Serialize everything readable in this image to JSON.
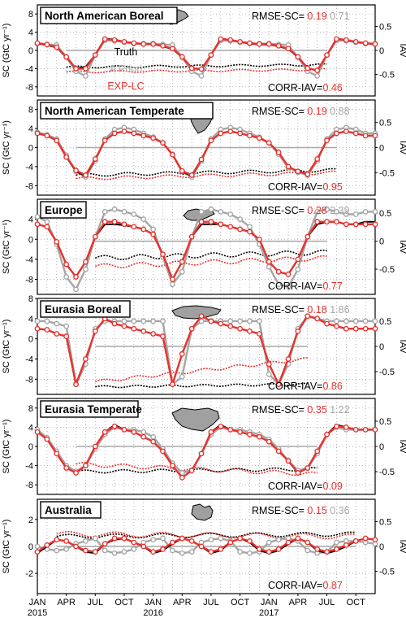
{
  "figure": {
    "ylabel_left": "SC (GtC yr⁻¹)",
    "ylabel_right": "IAV",
    "x_ticks": [
      {
        "label": "JAN",
        "month": 0,
        "year": "2015"
      },
      {
        "label": "APR",
        "month": 3
      },
      {
        "label": "JUL",
        "month": 6
      },
      {
        "label": "OCT",
        "month": 9
      },
      {
        "label": "JAN",
        "month": 12,
        "year": "2016"
      },
      {
        "label": "APR",
        "month": 15
      },
      {
        "label": "JUL",
        "month": 18
      },
      {
        "label": "OCT",
        "month": 21
      },
      {
        "label": "JAN",
        "month": 24,
        "year": "2017"
      },
      {
        "label": "APR",
        "month": 27
      },
      {
        "label": "JUL",
        "month": 30
      },
      {
        "label": "OCT",
        "month": 33
      }
    ],
    "x_range_months": [
      0,
      35
    ],
    "legend": {
      "truth": "Truth",
      "apriori": "A Priori",
      "exp": "EXP-LC"
    },
    "colors": {
      "truth": "#000000",
      "apriori": "#a6a6a6",
      "exp": "#e8332f",
      "grid": "#9a9a9a"
    },
    "labels": {
      "rmse": "RMSE-SC=",
      "corr": "CORR-IAV="
    },
    "map_icons": [
      "north-america-boreal-map-icon",
      "north-america-temperate-map-icon",
      "europe-map-icon",
      "eurasia-boreal-map-icon",
      "eurasia-temperate-map-icon",
      "australia-map-icon"
    ]
  },
  "chart_data": [
    {
      "type": "line",
      "title": "North American Boreal",
      "ylim": [
        -10,
        10
      ],
      "yticks": [
        8,
        4,
        0,
        -4,
        -8
      ],
      "iav_ylim": [
        -0.95,
        0.95
      ],
      "iav_ticks": [
        0.5,
        0,
        -0.5
      ],
      "rmse_exp": "0.19",
      "rmse_apriori": "0.71",
      "corr_iav": "0.46",
      "series": [
        {
          "name": "Truth",
          "values": [
            1.5,
            1.2,
            0.6,
            -1.5,
            -4.0,
            -3.6,
            -1,
            2.6,
            2.4,
            1.9,
            1.6,
            1.4,
            1.4,
            0.9,
            0.3,
            -1.5,
            -3.8,
            -4.2,
            -1,
            2.6,
            2.3,
            1.9,
            1.5,
            1.3,
            1.3,
            0.9,
            0.3,
            -1.5,
            -3.8,
            -4.5,
            -1,
            2.6,
            2.3,
            1.9,
            1.6,
            1.3
          ]
        },
        {
          "name": "A Priori",
          "values": [
            1.5,
            1.3,
            1.2,
            -1.5,
            -4.6,
            -5.6,
            -1,
            2.2,
            2.1,
            1.8,
            1.5,
            1.5,
            1.5,
            1.3,
            1.2,
            -1.5,
            -4.6,
            -5.6,
            -1,
            2.2,
            2.1,
            1.8,
            1.5,
            1.5,
            1.5,
            1.3,
            1.2,
            -1.5,
            -4.6,
            -5.6,
            -1,
            2.2,
            2.1,
            1.8,
            1.5,
            1.5
          ]
        },
        {
          "name": "EXP-LC",
          "values": [
            1.6,
            1.3,
            0.7,
            -1.4,
            -4.0,
            -4.0,
            -1,
            2.5,
            2.3,
            1.9,
            1.6,
            1.4,
            1.4,
            1.0,
            0.4,
            -1.4,
            -3.9,
            -4.1,
            -1,
            2.5,
            2.3,
            1.9,
            1.6,
            1.4,
            1.4,
            1.0,
            0.4,
            -1.4,
            -3.9,
            -4.4,
            -1,
            2.5,
            2.3,
            1.9,
            1.6,
            1.4
          ]
        }
      ],
      "iav": {
        "truth": {
          "start_month": 3,
          "end_month": 30,
          "start": -0.35,
          "end": -0.3,
          "wiggle": 0.02
        },
        "apriori": {
          "value": 0,
          "start_month": 3,
          "end_month": 30
        },
        "exp": {
          "start_month": 3,
          "end_month": 30,
          "start": -0.45,
          "end": -0.4,
          "wiggle": 0.02
        }
      }
    },
    {
      "type": "line",
      "title": "North American Temperate",
      "ylim": [
        -10,
        10
      ],
      "yticks": [
        8,
        4,
        0,
        -4,
        -8
      ],
      "iav_ylim": [
        -0.95,
        0.95
      ],
      "iav_ticks": [
        0.5,
        0,
        -0.5
      ],
      "rmse_exp": "0.19",
      "rmse_apriori": "0.88",
      "corr_iav": "0.95",
      "series": [
        {
          "name": "Truth",
          "values": [
            3.0,
            2.5,
            1.5,
            -2.0,
            -5.0,
            -6.0,
            -2.5,
            1.5,
            3.0,
            3.4,
            3.0,
            2.5,
            2.0,
            1.0,
            -1.5,
            -5.0,
            -6.0,
            -2.5,
            1.5,
            3.0,
            3.4,
            3.0,
            2.5,
            2.0,
            1.0,
            -1.0,
            -4.0,
            -5.0,
            -5.5,
            -2.5,
            1.5,
            3.0,
            3.4,
            3.0,
            2.5,
            2.5
          ]
        },
        {
          "name": "A Priori",
          "values": [
            3.2,
            2.7,
            1.8,
            -1.6,
            -5.0,
            -6.2,
            -2.8,
            1.8,
            3.8,
            4.2,
            3.8,
            3.0,
            2.2,
            1.0,
            -1.4,
            -5.0,
            -6.2,
            -2.8,
            1.8,
            3.8,
            4.2,
            3.8,
            3.0,
            2.2,
            1.0,
            -1.4,
            -4.2,
            -5.2,
            -5.8,
            -2.8,
            1.8,
            3.8,
            4.2,
            3.8,
            3.0,
            3.0
          ]
        },
        {
          "name": "EXP-LC",
          "values": [
            3.0,
            2.5,
            1.5,
            -2.0,
            -4.8,
            -5.8,
            -2.4,
            1.5,
            3.0,
            3.4,
            3.0,
            2.5,
            2.0,
            1.0,
            -1.5,
            -4.9,
            -5.8,
            -2.5,
            1.5,
            3.0,
            3.4,
            3.0,
            2.5,
            2.0,
            1.0,
            -1.0,
            -4.0,
            -5.0,
            -5.6,
            -2.4,
            1.5,
            3.0,
            3.4,
            3.0,
            2.5,
            2.5
          ]
        }
      ],
      "iav": {
        "truth": {
          "start_month": 4,
          "end_month": 31,
          "start": -0.55,
          "end": -0.45,
          "wiggle": 0.03
        },
        "apriori": {
          "value": 0,
          "start_month": 4,
          "end_month": 31
        },
        "exp": {
          "start_month": 4,
          "end_month": 31,
          "start": -0.62,
          "end": -0.5,
          "wiggle": 0.03
        }
      }
    },
    {
      "type": "line",
      "title": "Europe",
      "ylim": [
        -11,
        8
      ],
      "yticks": [
        4,
        0,
        -4,
        -8
      ],
      "iav_ylim": [
        -0.95,
        0.75
      ],
      "iav_ticks": [
        0.5,
        0,
        -0.5
      ],
      "rmse_exp": "0.28",
      "rmse_apriori": "2.39",
      "corr_iav": "0.77",
      "series": [
        {
          "name": "Truth",
          "values": [
            3.0,
            2.5,
            -0.5,
            -5.0,
            -7.5,
            -4.5,
            0.5,
            3.0,
            3.0,
            2.8,
            2.5,
            2.0,
            1.0,
            -3.0,
            -8.0,
            -4.5,
            0.5,
            3.0,
            3.0,
            3.0,
            2.5,
            2.0,
            1.5,
            0.0,
            -4.5,
            -6.5,
            -7.0,
            -4.0,
            0.5,
            3.0,
            3.5,
            3.5,
            3.0,
            3.0,
            3.5,
            3.5
          ]
        },
        {
          "name": "A Priori",
          "values": [
            4.5,
            3.5,
            -1.0,
            -7.5,
            -10.0,
            -6.0,
            0.5,
            5.5,
            6.0,
            5.5,
            5.0,
            4.0,
            2.0,
            -3.5,
            -9.0,
            -6.5,
            0.5,
            5.5,
            6.0,
            5.5,
            5.0,
            4.0,
            2.5,
            -1.0,
            -5.5,
            -9.0,
            -9.5,
            -6.0,
            0.5,
            5.5,
            6.0,
            5.5,
            5.0,
            5.0,
            5.5,
            5.5
          ]
        },
        {
          "name": "EXP-LC",
          "values": [
            3.0,
            2.5,
            -0.5,
            -5.0,
            -7.5,
            -4.5,
            0.5,
            3.5,
            3.5,
            3.0,
            2.5,
            2.0,
            1.0,
            -3.0,
            -8.0,
            -4.5,
            0.5,
            3.5,
            3.5,
            3.0,
            2.5,
            2.0,
            1.5,
            0.0,
            -4.5,
            -6.5,
            -7.0,
            -4.0,
            0.5,
            3.5,
            3.5,
            3.5,
            3.0,
            3.0,
            3.0,
            3.0
          ]
        }
      ],
      "iav": {
        "truth": {
          "start_month": 6,
          "end_month": 30,
          "start": -0.3,
          "end": -0.2,
          "wiggle": 0.04
        },
        "apriori": {
          "value": 0,
          "start_month": 6,
          "end_month": 30
        },
        "exp": {
          "start_month": 6,
          "end_month": 30,
          "start": -0.45,
          "end": -0.3,
          "wiggle": 0.04
        }
      }
    },
    {
      "type": "line",
      "title": "Eurasia Boreal",
      "ylim": [
        -11,
        8
      ],
      "yticks": [
        8,
        4,
        0,
        -4,
        -8
      ],
      "iav_ylim": [
        -0.95,
        0.95
      ],
      "iav_ticks": [
        0.5,
        0,
        -0.5
      ],
      "rmse_exp": "0.18",
      "rmse_apriori": "1.86",
      "corr_iav": "0.86",
      "series": [
        {
          "name": "Truth",
          "values": [
            2.0,
            1.8,
            1.0,
            0.5,
            -9.0,
            -4.0,
            1.5,
            4.0,
            3.0,
            2.5,
            2.0,
            1.5,
            1.0,
            0.5,
            -9.0,
            -3.0,
            2.0,
            4.5,
            3.5,
            3.0,
            2.5,
            2.0,
            1.5,
            1.0,
            -5.0,
            -9.0,
            -4.0,
            1.5,
            4.5,
            4.0,
            3.0,
            2.5,
            2.0,
            2.0,
            2.0,
            2.0
          ]
        },
        {
          "name": "A Priori",
          "values": [
            3.5,
            3.5,
            3.0,
            2.5,
            -9.0,
            -5.0,
            2.0,
            3.5,
            3.5,
            3.5,
            3.5,
            3.5,
            3.5,
            3.5,
            -9.0,
            -7.5,
            2.0,
            3.5,
            3.5,
            3.5,
            3.5,
            3.5,
            3.5,
            3.5,
            -7.0,
            -9.0,
            -5.0,
            2.0,
            4.5,
            4.0,
            3.5,
            3.5,
            3.5,
            3.5,
            3.5,
            3.5
          ]
        },
        {
          "name": "EXP-LC",
          "values": [
            2.0,
            1.8,
            1.0,
            0.5,
            -9.0,
            -4.0,
            1.5,
            4.0,
            3.0,
            2.5,
            2.0,
            1.5,
            1.0,
            0.5,
            -9.0,
            -3.0,
            2.0,
            4.5,
            3.5,
            3.0,
            2.5,
            2.0,
            1.5,
            1.0,
            -5.0,
            -9.0,
            -4.0,
            1.5,
            4.5,
            4.0,
            3.0,
            2.5,
            2.0,
            2.0,
            2.0,
            2.0
          ]
        }
      ],
      "iav": {
        "truth": {
          "start_month": 6,
          "end_month": 28,
          "start": -0.8,
          "end": -0.75,
          "wiggle": 0.02
        },
        "apriori": {
          "value": 0,
          "start_month": 6,
          "end_month": 28
        },
        "exp": {
          "start_month": 6,
          "end_month": 28,
          "start": -0.7,
          "end": -0.25,
          "wiggle": 0.03
        }
      }
    },
    {
      "type": "line",
      "title": "Eurasia Temperate",
      "ylim": [
        -10,
        10
      ],
      "yticks": [
        8,
        4,
        0,
        -4,
        -8
      ],
      "iav_ylim": [
        -0.95,
        0.95
      ],
      "iav_ticks": [
        0.5,
        0,
        -0.5
      ],
      "rmse_exp": "0.35",
      "rmse_apriori": "1.22",
      "corr_iav": "0.09",
      "series": [
        {
          "name": "Truth",
          "values": [
            3.0,
            1.5,
            -1.5,
            -4.5,
            -5.5,
            -4.0,
            0.0,
            3.0,
            4.5,
            3.5,
            3.0,
            2.0,
            1.0,
            -1.0,
            -4.0,
            -6.5,
            -5.0,
            -1.5,
            3.0,
            4.5,
            3.5,
            3.0,
            2.5,
            2.0,
            1.0,
            -1.0,
            -3.0,
            -5.5,
            -4.5,
            -1.0,
            2.5,
            4.5,
            4.0,
            3.5,
            3.5,
            3.5
          ]
        },
        {
          "name": "A Priori",
          "values": [
            3.5,
            1.8,
            -1.0,
            -4.0,
            -5.2,
            -4.0,
            -0.5,
            2.5,
            4.0,
            3.5,
            3.5,
            3.0,
            2.0,
            -0.5,
            -3.5,
            -5.5,
            -5.0,
            -1.5,
            2.5,
            4.0,
            3.5,
            3.5,
            3.0,
            2.5,
            1.5,
            -0.5,
            -3.0,
            -5.0,
            -4.5,
            -1.5,
            2.5,
            4.0,
            3.5,
            3.5,
            3.5,
            3.5
          ]
        },
        {
          "name": "EXP-LC",
          "values": [
            3.0,
            1.5,
            -1.5,
            -4.5,
            -5.5,
            -4.0,
            0.0,
            3.0,
            4.2,
            3.5,
            3.0,
            2.0,
            1.0,
            -1.0,
            -4.0,
            -6.5,
            -5.0,
            -1.5,
            3.0,
            4.2,
            3.5,
            3.0,
            2.5,
            2.0,
            1.0,
            -1.0,
            -3.0,
            -5.5,
            -4.5,
            -1.0,
            2.5,
            4.2,
            4.0,
            3.5,
            3.5,
            3.5
          ]
        }
      ],
      "iav": {
        "truth": {
          "start_month": 4,
          "end_month": 29,
          "start": -0.5,
          "end": -0.45,
          "wiggle": 0.03
        },
        "apriori": {
          "value": 0,
          "start_month": 4,
          "end_month": 29
        },
        "exp": {
          "start_month": 4,
          "end_month": 29,
          "start": -0.35,
          "end": -0.55,
          "wiggle": 0.04
        }
      }
    },
    {
      "type": "line",
      "title": "Australia",
      "ylim": [
        -3.5,
        3.5
      ],
      "yticks": [
        2,
        0,
        -2
      ],
      "iav_ylim": [
        -0.95,
        0.95
      ],
      "iav_ticks": [
        0.5,
        0,
        -0.5
      ],
      "rmse_exp": "0.15",
      "rmse_apriori": "0.36",
      "corr_iav": "0.87",
      "series": [
        {
          "name": "Truth",
          "values": [
            -0.5,
            0.0,
            0.5,
            0.4,
            0.0,
            -0.4,
            -0.5,
            0.2,
            0.5,
            0.6,
            0.3,
            0.0,
            -0.5,
            -0.3,
            0.2,
            0.6,
            0.4,
            0.0,
            -0.5,
            -0.3,
            0.3,
            0.6,
            0.3,
            -0.3,
            -0.5,
            -0.3,
            0.2,
            0.6,
            0.3,
            -0.3,
            -0.5,
            -0.3,
            0.0,
            0.4,
            0.6,
            0.5
          ]
        },
        {
          "name": "A Priori",
          "values": [
            0.0,
            -0.2,
            -0.3,
            -0.2,
            0.2,
            0.4,
            0.6,
            -0.3,
            -0.5,
            -0.4,
            -0.2,
            0.3,
            0.5,
            0.6,
            -0.3,
            -0.5,
            -0.4,
            0.3,
            0.5,
            0.6,
            0.4,
            -0.4,
            -0.5,
            -0.4,
            0.3,
            0.5,
            0.6,
            0.4,
            -0.3,
            -0.5,
            -0.4,
            0.3,
            0.4,
            0.4,
            0.3,
            0.2
          ]
        },
        {
          "name": "EXP-LC",
          "values": [
            -0.4,
            0.1,
            0.5,
            0.4,
            0.0,
            -0.3,
            -0.4,
            0.2,
            0.6,
            0.6,
            0.3,
            0.0,
            -0.4,
            -0.2,
            0.3,
            0.6,
            0.4,
            0.0,
            -0.4,
            -0.2,
            0.3,
            0.6,
            0.4,
            -0.2,
            -0.4,
            -0.2,
            0.3,
            0.6,
            0.3,
            -0.2,
            -0.4,
            -0.2,
            0.1,
            0.4,
            0.6,
            0.5
          ]
        }
      ],
      "iav": {
        "truth": {
          "start_month": 2,
          "end_month": 33,
          "start": 0.2,
          "end": 0.25,
          "wiggle": 0.04
        },
        "apriori": {
          "value": 0,
          "start_month": 2,
          "end_month": 33
        },
        "exp": {
          "start_month": 2,
          "end_month": 33,
          "start": 0.25,
          "end": 0.2,
          "wiggle": 0.05
        }
      }
    }
  ]
}
